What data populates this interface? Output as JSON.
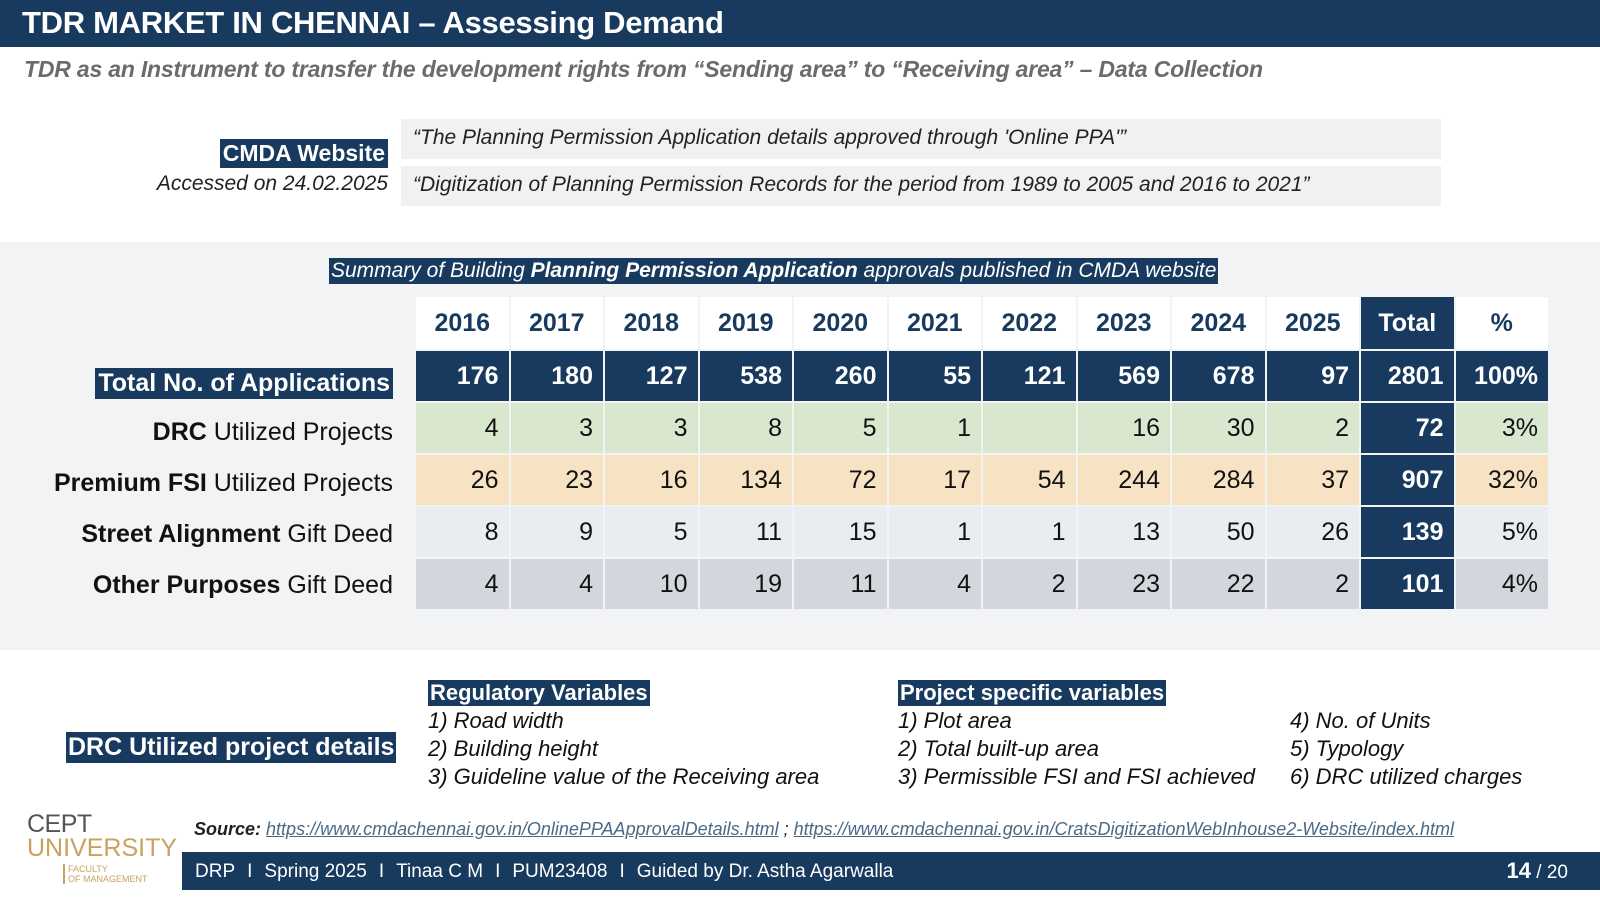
{
  "title": "TDR MARKET IN CHENNAI – Assessing Demand",
  "subtitle": "TDR as an Instrument to transfer the development rights from “Sending area” to “Receiving area” – Data Collection",
  "cmda": {
    "label": "CMDA Website",
    "accessed": "Accessed on 24.02.2025",
    "quote1": "“The Planning Permission Application details approved through 'Online PPA'”",
    "quote2": "“Digitization of Planning Permission Records for the period from 1989 to 2005 and 2016 to 2021”"
  },
  "table": {
    "caption_pre": "Summary of Building ",
    "caption_bold": "Planning Permission Application",
    "caption_post": " approvals published in CMDA website",
    "headers": [
      "2016",
      "2017",
      "2018",
      "2019",
      "2020",
      "2021",
      "2022",
      "2023",
      "2024",
      "2025",
      "Total",
      "%"
    ],
    "rows": [
      {
        "label_bold": "Total No. of Applications",
        "label_rest": "",
        "values": [
          "176",
          "180",
          "127",
          "538",
          "260",
          "55",
          "121",
          "569",
          "678",
          "97",
          "2801",
          "100%"
        ]
      },
      {
        "label_bold": "DRC",
        "label_rest": " Utilized Projects",
        "values": [
          "4",
          "3",
          "3",
          "8",
          "5",
          "1",
          "",
          "16",
          "30",
          "2",
          "72",
          "3%"
        ]
      },
      {
        "label_bold": "Premium FSI",
        "label_rest": " Utilized Projects",
        "values": [
          "26",
          "23",
          "16",
          "134",
          "72",
          "17",
          "54",
          "244",
          "284",
          "37",
          "907",
          "32%"
        ]
      },
      {
        "label_bold": "Street Alignment",
        "label_rest": " Gift Deed",
        "values": [
          "8",
          "9",
          "5",
          "11",
          "15",
          "1",
          "1",
          "13",
          "50",
          "26",
          "139",
          "5%"
        ]
      },
      {
        "label_bold": "Other Purposes",
        "label_rest": " Gift Deed",
        "values": [
          "4",
          "4",
          "10",
          "19",
          "11",
          "4",
          "2",
          "23",
          "22",
          "2",
          "101",
          "4%"
        ]
      }
    ]
  },
  "drc_details": {
    "label": "DRC Utilized project details",
    "regulatory": {
      "head": "Regulatory Variables",
      "items": [
        "1) Road width",
        "2) Building height",
        "3) Guideline value of the Receiving area"
      ]
    },
    "project": {
      "head": "Project specific variables",
      "items": [
        "1) Plot area",
        "2) Total built-up area",
        "3) Permissible FSI and FSI achieved"
      ],
      "items2": [
        "4) No. of Units",
        "5) Typology",
        "6) DRC utilized charges"
      ]
    }
  },
  "logo": {
    "line1": "CEPT",
    "line2": "UNIVERSITY",
    "line3": "FACULTY",
    "line4": "OF MANAGEMENT"
  },
  "source": {
    "label": "Source:",
    "link1": "https://www.cmdachennai.gov.in/OnlinePPAApprovalDetails.html",
    "sep": " ; ",
    "link2": "https://www.cmdachennai.gov.in/CratsDigitizationWebInhouse2-Website/index.html"
  },
  "footer": {
    "items": [
      "DRP",
      "Spring 2025",
      "Tinaa C M",
      "PUM23408",
      "Guided by Dr. Astha Agarwalla"
    ],
    "separator": "I",
    "page": "14",
    "total": " / 20"
  },
  "colors": {
    "navy": "#173a5e",
    "drc_row": "#d9e7cf",
    "premium_row": "#f7e3c3",
    "street_row": "#e9edf2",
    "other_row": "#d3d7dd"
  }
}
